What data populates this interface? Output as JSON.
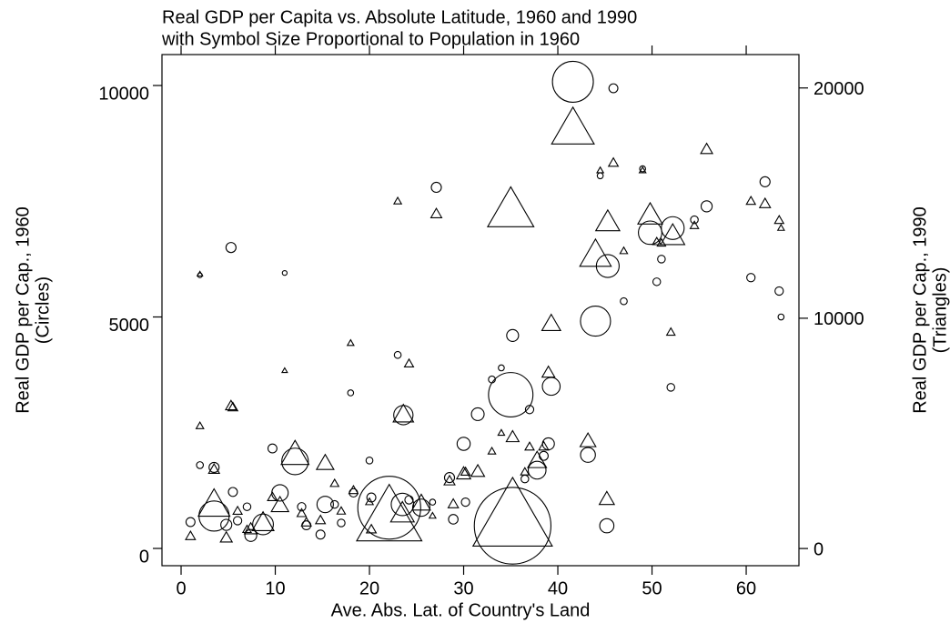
{
  "chart_data": {
    "type": "scatter",
    "title": "Real GDP per Capita vs. Absolute Latitude, 1960 and 1990",
    "subtitle": "with Symbol Size Proportional to Population in 1960",
    "xlabel": "Ave. Abs. Lat. of Country's Land",
    "ylabel": [
      "Real GDP per Cap., 1960",
      "(Circles)"
    ],
    "y2label": [
      "Real GDP per Cap., 1990",
      "(Triangles)"
    ],
    "xlim": [
      -2.03,
      65.6
    ],
    "xticks": [
      0,
      10,
      20,
      30,
      40,
      50,
      60
    ],
    "ylim": [
      -373,
      10668
    ],
    "yticks": [
      0,
      5000,
      10000
    ],
    "y2lim": [
      -746,
      21450
    ],
    "y2ticks": [
      0,
      10000,
      20000
    ],
    "x": [
      35.2,
      22.1,
      41.6,
      35.0,
      44.0,
      3.5,
      12.1,
      23.5,
      8.7,
      23.6,
      49.8,
      52.2,
      45.3,
      39.3,
      37.8,
      25.5,
      15.3,
      10.5,
      43.2,
      45.2,
      30.0,
      31.5,
      35.2,
      39.0,
      27.1,
      5.3,
      55.8,
      60.5,
      62.0,
      63.5,
      52.0,
      45.9,
      44.5,
      49.0,
      50.5,
      47.0,
      51.0,
      54.5,
      2.0,
      11.0,
      23.0,
      24.2,
      18.0,
      5.5,
      2.0,
      3.5,
      9.7,
      16.3,
      18.3,
      20.0,
      28.5,
      28.9,
      30.2,
      33.0,
      37.0,
      38.5,
      7.4,
      4.8,
      13.3,
      14.8,
      1.0,
      20.2,
      6.0,
      12.8,
      17.0,
      7.0,
      26.7,
      34.0,
      36.5,
      63.7
    ],
    "sizes": [
      660,
      440,
      180,
      214,
      94,
      95,
      72,
      50,
      42,
      36,
      55,
      52,
      52,
      30,
      30,
      28,
      25,
      25,
      20,
      18,
      15,
      14,
      12,
      12,
      8,
      8,
      10,
      5,
      8,
      5,
      4,
      6,
      2,
      2,
      4,
      3,
      4,
      4,
      1,
      1,
      3,
      5,
      2,
      6,
      3,
      8,
      6,
      4,
      5,
      3,
      8,
      7,
      5,
      3,
      5,
      6,
      12,
      10,
      6,
      6,
      6,
      6,
      5,
      5,
      4,
      4,
      2,
      2,
      4,
      2
    ],
    "series": [
      {
        "marker": "circle",
        "color": "#000000",
        "values": [
          490,
          880,
          10080,
          3320,
          4910,
          700,
          1880,
          950,
          520,
          2880,
          6820,
          6920,
          6100,
          3500,
          1690,
          880,
          950,
          1200,
          2020,
          490,
          2260,
          2900,
          4600,
          2260,
          7800,
          6500,
          7390,
          5850,
          7920,
          5560,
          3480,
          9940,
          8050,
          8200,
          5760,
          5340,
          6250,
          7100,
          5900,
          5950,
          4180,
          1050,
          3360,
          1220,
          1800,
          1750,
          2160,
          950,
          1200,
          1900,
          1530,
          630,
          1000,
          3650,
          3000,
          2000,
          280,
          510,
          500,
          300,
          570,
          1100,
          600,
          900,
          550,
          900,
          1000,
          3900,
          1500,
          5000
        ]
      },
      {
        "marker": "triangle",
        "color": "#000000",
        "axis": "y2",
        "values": [
          1100,
          1150,
          18100,
          14550,
          12650,
          1800,
          4000,
          1450,
          1050,
          5750,
          14400,
          13500,
          14100,
          9700,
          3750,
          1900,
          3650,
          1820,
          4620,
          2100,
          3200,
          3300,
          4800,
          7600,
          14500,
          6160,
          17300,
          15060,
          14940,
          14230,
          9370,
          16720,
          16400,
          16400,
          13300,
          12900,
          13240,
          14000,
          11900,
          7710,
          15060,
          8000,
          8900,
          6100,
          5300,
          3400,
          2200,
          2800,
          2500,
          2000,
          2900,
          1900,
          3300,
          4200,
          4390,
          4400,
          800,
          430,
          1100,
          1200,
          510,
          800,
          1600,
          1500,
          1600,
          800,
          1400,
          5000,
          3300,
          13900
        ]
      }
    ]
  }
}
